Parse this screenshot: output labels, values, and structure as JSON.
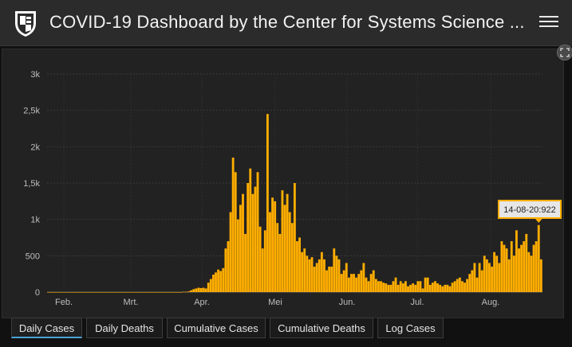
{
  "header": {
    "title": "COVID-19 Dashboard by the Center for Systems Science ...",
    "logo_icon": "university-shield-logo",
    "menu_icon": "hamburger-menu-icon"
  },
  "colors": {
    "accent": "#ffae00",
    "active_tab": "#4aa3d8"
  },
  "tooltip": {
    "text": "14-08-20:922"
  },
  "tabs": [
    {
      "label": "Daily Cases",
      "active": true
    },
    {
      "label": "Daily Deaths",
      "active": false
    },
    {
      "label": "Cumulative Cases",
      "active": false
    },
    {
      "label": "Cumulative Deaths",
      "active": false
    },
    {
      "label": "Log Cases",
      "active": false
    }
  ],
  "chart_data": {
    "type": "bar",
    "x_ticks": [
      "Feb.",
      "Mrt.",
      "Apr.",
      "Mei",
      "Jun.",
      "Jul.",
      "Aug."
    ],
    "y_ticks": [
      "0",
      "500",
      "1k",
      "1,5k",
      "2k",
      "2,5k",
      "3k"
    ],
    "ylim": [
      0,
      3000
    ],
    "grid": true,
    "highlighted": {
      "label": "14-08-20",
      "value": 922
    },
    "values": [
      0,
      0,
      0,
      0,
      0,
      0,
      0,
      0,
      0,
      0,
      0,
      0,
      0,
      0,
      0,
      0,
      0,
      0,
      0,
      0,
      0,
      0,
      0,
      0,
      0,
      0,
      0,
      0,
      0,
      0,
      0,
      0,
      0,
      0,
      0,
      0,
      0,
      0,
      0,
      0,
      0,
      0,
      0,
      0,
      0,
      0,
      0,
      0,
      0,
      0,
      0,
      0,
      0,
      0,
      0,
      5,
      3,
      10,
      25,
      40,
      50,
      60,
      55,
      60,
      50,
      130,
      180,
      240,
      270,
      310,
      290,
      330,
      600,
      700,
      1100,
      1850,
      1650,
      1000,
      1200,
      1350,
      800,
      1500,
      1700,
      1350,
      1450,
      1650,
      900,
      600,
      850,
      2450,
      1100,
      1300,
      1250,
      950,
      800,
      1400,
      1200,
      1350,
      1100,
      950,
      1500,
      700,
      750,
      550,
      600,
      500,
      450,
      480,
      350,
      400,
      450,
      550,
      450,
      300,
      350,
      350,
      600,
      500,
      450,
      250,
      300,
      400,
      200,
      250,
      250,
      200,
      250,
      300,
      400,
      200,
      150,
      250,
      300,
      180,
      150,
      150,
      130,
      120,
      100,
      100,
      150,
      200,
      100,
      150,
      120,
      150,
      80,
      100,
      120,
      100,
      150,
      150,
      50,
      200,
      200,
      100,
      130,
      150,
      120,
      100,
      80,
      100,
      100,
      80,
      130,
      150,
      180,
      200,
      150,
      130,
      180,
      250,
      300,
      400,
      200,
      400,
      300,
      500,
      450,
      400,
      350,
      550,
      500,
      400,
      700,
      650,
      600,
      450,
      700,
      500,
      850,
      600,
      650,
      700,
      800,
      550,
      500,
      650,
      700,
      922,
      450
    ]
  }
}
